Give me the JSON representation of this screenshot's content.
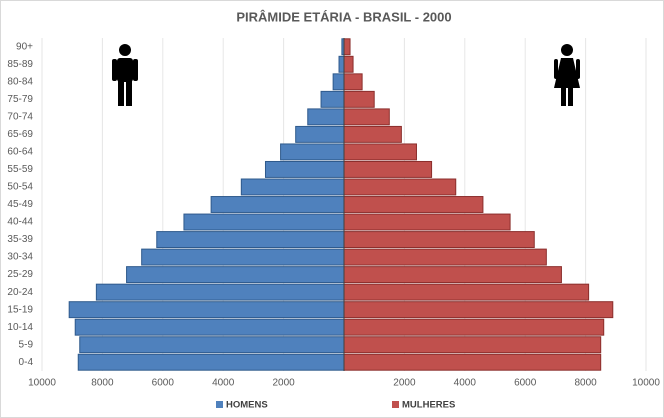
{
  "chart_data": {
    "type": "pyramid",
    "title": "PIRÂMIDE ETÁRIA - BRASIL - 2000",
    "categories": [
      "0-4",
      "5-9",
      "10-14",
      "15-19",
      "20-24",
      "25-29",
      "30-34",
      "35-39",
      "40-44",
      "45-49",
      "50-54",
      "55-59",
      "60-64",
      "65-69",
      "70-74",
      "75-79",
      "80-84",
      "85-89",
      "90+"
    ],
    "series": [
      {
        "name": "HOMENS",
        "color": "#4f81bd",
        "side": "left",
        "values": [
          8800,
          8750,
          8900,
          9100,
          8200,
          7200,
          6700,
          6200,
          5300,
          4400,
          3400,
          2600,
          2100,
          1600,
          1200,
          760,
          360,
          165,
          70
        ]
      },
      {
        "name": "MULHERES",
        "color": "#c0504d",
        "side": "right",
        "values": [
          8500,
          8500,
          8600,
          8900,
          8100,
          7200,
          6700,
          6300,
          5500,
          4600,
          3700,
          2900,
          2400,
          1900,
          1500,
          1000,
          600,
          300,
          200
        ]
      }
    ],
    "xlim": [
      -10000,
      10000
    ],
    "xticks": [
      {
        "value": -10000,
        "label": "10000"
      },
      {
        "value": -8000,
        "label": "8000"
      },
      {
        "value": -6000,
        "label": "6000"
      },
      {
        "value": -4000,
        "label": "4000"
      },
      {
        "value": -2000,
        "label": "2000"
      },
      2000,
      4000,
      6000,
      8000,
      10000
    ],
    "grid": true,
    "legend": "bottom"
  }
}
